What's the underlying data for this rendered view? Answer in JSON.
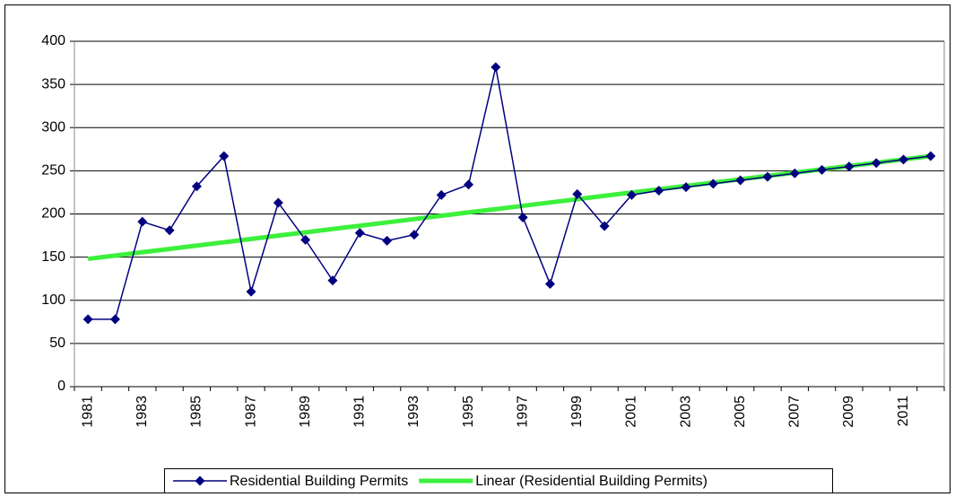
{
  "chart_data": {
    "type": "line",
    "categories": [
      "1981",
      null,
      "1983",
      null,
      "1985",
      null,
      "1987",
      null,
      "1989",
      null,
      "1991",
      null,
      "1993",
      null,
      "1995",
      null,
      "1997",
      null,
      "1999",
      null,
      "2001",
      null,
      "2003",
      null,
      "2005",
      null,
      "2007",
      null,
      "2009",
      null,
      "2011",
      null
    ],
    "series": [
      {
        "name": "Residential Building Permits",
        "color": "#000080",
        "values": [
          78,
          78,
          191,
          181,
          232,
          267,
          110,
          213,
          170,
          123,
          178,
          169,
          176,
          222,
          234,
          370,
          196,
          119,
          223,
          186,
          222,
          227,
          231,
          235,
          239,
          243,
          247,
          251,
          255,
          259,
          263,
          267
        ]
      },
      {
        "name": "Linear (Residential Building Permits)",
        "color": "#3cf03c",
        "values": [
          148,
          151.8,
          155.7,
          159.5,
          163.4,
          167.2,
          171,
          174.9,
          178.7,
          182.6,
          186.4,
          190.2,
          194.1,
          197.9,
          201.8,
          205.6,
          209.4,
          213.3,
          217.1,
          221,
          224.8,
          228.6,
          232.5,
          236.3,
          240.2,
          244,
          247.8,
          251.7,
          255.5,
          259.4,
          263.2,
          267
        ]
      }
    ],
    "ylim": [
      0,
      400
    ],
    "yticks": [
      0,
      50,
      100,
      150,
      200,
      250,
      300,
      350,
      400
    ],
    "grid": true,
    "legend": "bottom"
  }
}
